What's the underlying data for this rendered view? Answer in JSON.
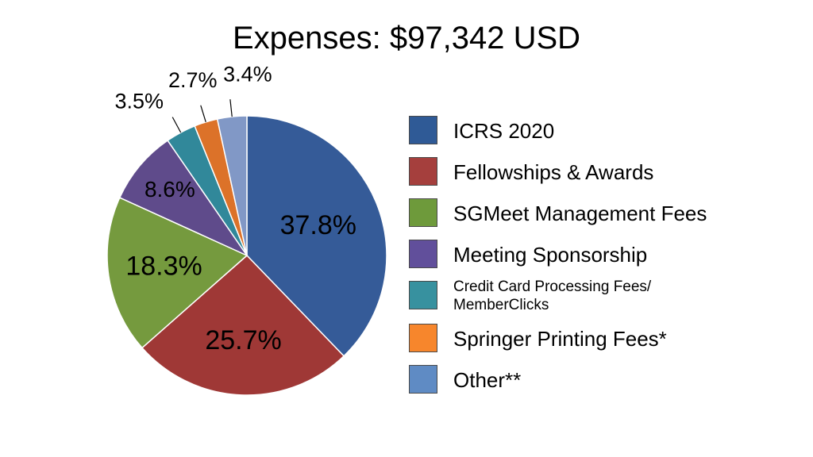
{
  "chart_data": {
    "type": "pie",
    "title": "Expenses: $97,342 USD",
    "slices": [
      {
        "label": "ICRS 2020",
        "value": 37.8,
        "value_label": "37.8%",
        "color": "#355b98"
      },
      {
        "label": "Fellowships & Awards",
        "value": 25.7,
        "value_label": "25.7%",
        "color": "#9f3836"
      },
      {
        "label": "SGMeet Management Fees",
        "value": 18.3,
        "value_label": "18.3%",
        "color": "#759a3e"
      },
      {
        "label": "Meeting Sponsorship",
        "value": 8.6,
        "value_label": "8.6%",
        "color": "#5f4b8b"
      },
      {
        "label": "Credit Card Processing Fees/ MemberClicks",
        "value": 3.5,
        "value_label": "3.5%",
        "color": "#31889a"
      },
      {
        "label": "Springer Printing Fees*",
        "value": 2.7,
        "value_label": "2.7%",
        "color": "#dc7229"
      },
      {
        "label": "Other**",
        "value": 3.4,
        "value_label": "3.4%",
        "color": "#8198c6"
      }
    ],
    "legend_position": "right",
    "legend_colors": [
      "#2f5a96",
      "#a53f3d",
      "#6e9a3b",
      "#614f9b",
      "#37919f",
      "#f7862c",
      "#5f8bc4"
    ]
  }
}
